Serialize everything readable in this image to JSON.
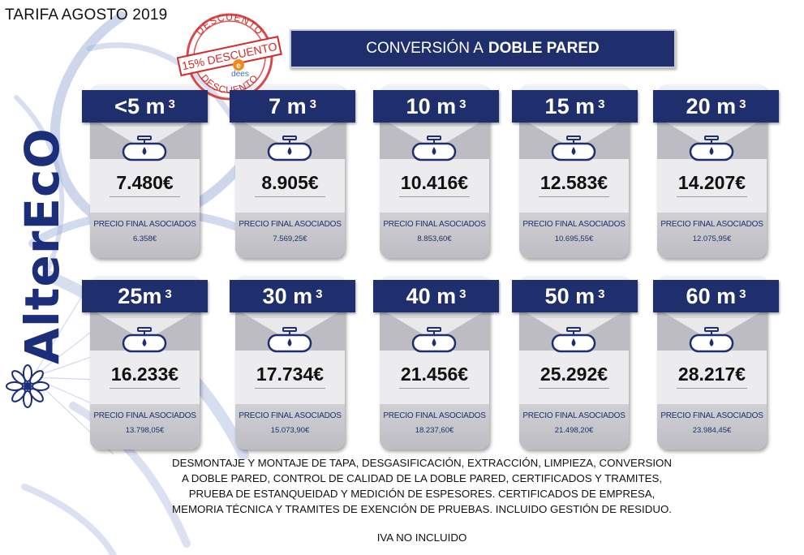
{
  "title": "TARIFA AGOSTO 2019",
  "brand": "AlterEcO",
  "stamp": {
    "top_text": "DESCUENTO",
    "band_text": "15% DESCUENTO",
    "bottom_text": "DESCUENTO",
    "logo_text": "dees"
  },
  "header": {
    "prefix": "CONVERSIÓN A",
    "emphasis": "DOBLE PARED"
  },
  "labels": {
    "associates": "PRECIO FINAL ASOCIADOS"
  },
  "cards": [
    {
      "volume": "<5 m",
      "unit_sup": "3",
      "price": "7.480€",
      "associate_price": "6.358€"
    },
    {
      "volume": "7 m",
      "unit_sup": "3",
      "price": "8.905€",
      "associate_price": "7.569,25€"
    },
    {
      "volume": "10 m",
      "unit_sup": "3",
      "price": "10.416€",
      "associate_price": "8.853,60€"
    },
    {
      "volume": "15 m",
      "unit_sup": "3",
      "price": "12.583€",
      "associate_price": "10.695,55€"
    },
    {
      "volume": "20 m",
      "unit_sup": "3",
      "price": "14.207€",
      "associate_price": "12.075,95€"
    },
    {
      "volume": "25m",
      "unit_sup": "3",
      "price": "16.233€",
      "associate_price": "13.798,05€"
    },
    {
      "volume": "30 m",
      "unit_sup": "3",
      "price": "17.734€",
      "associate_price": "15.073,90€"
    },
    {
      "volume": "40 m",
      "unit_sup": "3",
      "price": "21.456€",
      "associate_price": "18.237,60€"
    },
    {
      "volume": "50 m",
      "unit_sup": "3",
      "price": "25.292€",
      "associate_price": "21.498,20€"
    },
    {
      "volume": "60 m",
      "unit_sup": "3",
      "price": "28.217€",
      "associate_price": "23.984,45€"
    }
  ],
  "description_lines": [
    "DESMONTAJE Y MONTAJE DE TAPA, DESGASIFICACIÓN, EXTRACCIÓN, LIMPIEZA, CONVERSION",
    "A DOBLE PARED,  CONTROL DE CALIDAD DE LA DOBLE PARED, CERTIFICADOS Y TRAMITES,",
    "PRUEBA DE ESTANQUEIDAD Y MEDICIÓN DE ESPESORES. CERTIFICADOS DE EMPRESA,",
    "MEMORIA TÉCNICA Y TRAMITES DE EXENCIÓN DE PRUEBAS. INCLUIDO GESTIÓN DE RESIDUO."
  ],
  "footer_note": "IVA NO INCLUIDO",
  "colors": {
    "navy": "#1f2f6e",
    "brand_blue": "#1c2e7a",
    "stamp_red": "#d42a2a",
    "decor_blue": "#9fb0d8"
  },
  "icons": {
    "tank": "tank-icon",
    "flower": "flower-icon"
  }
}
